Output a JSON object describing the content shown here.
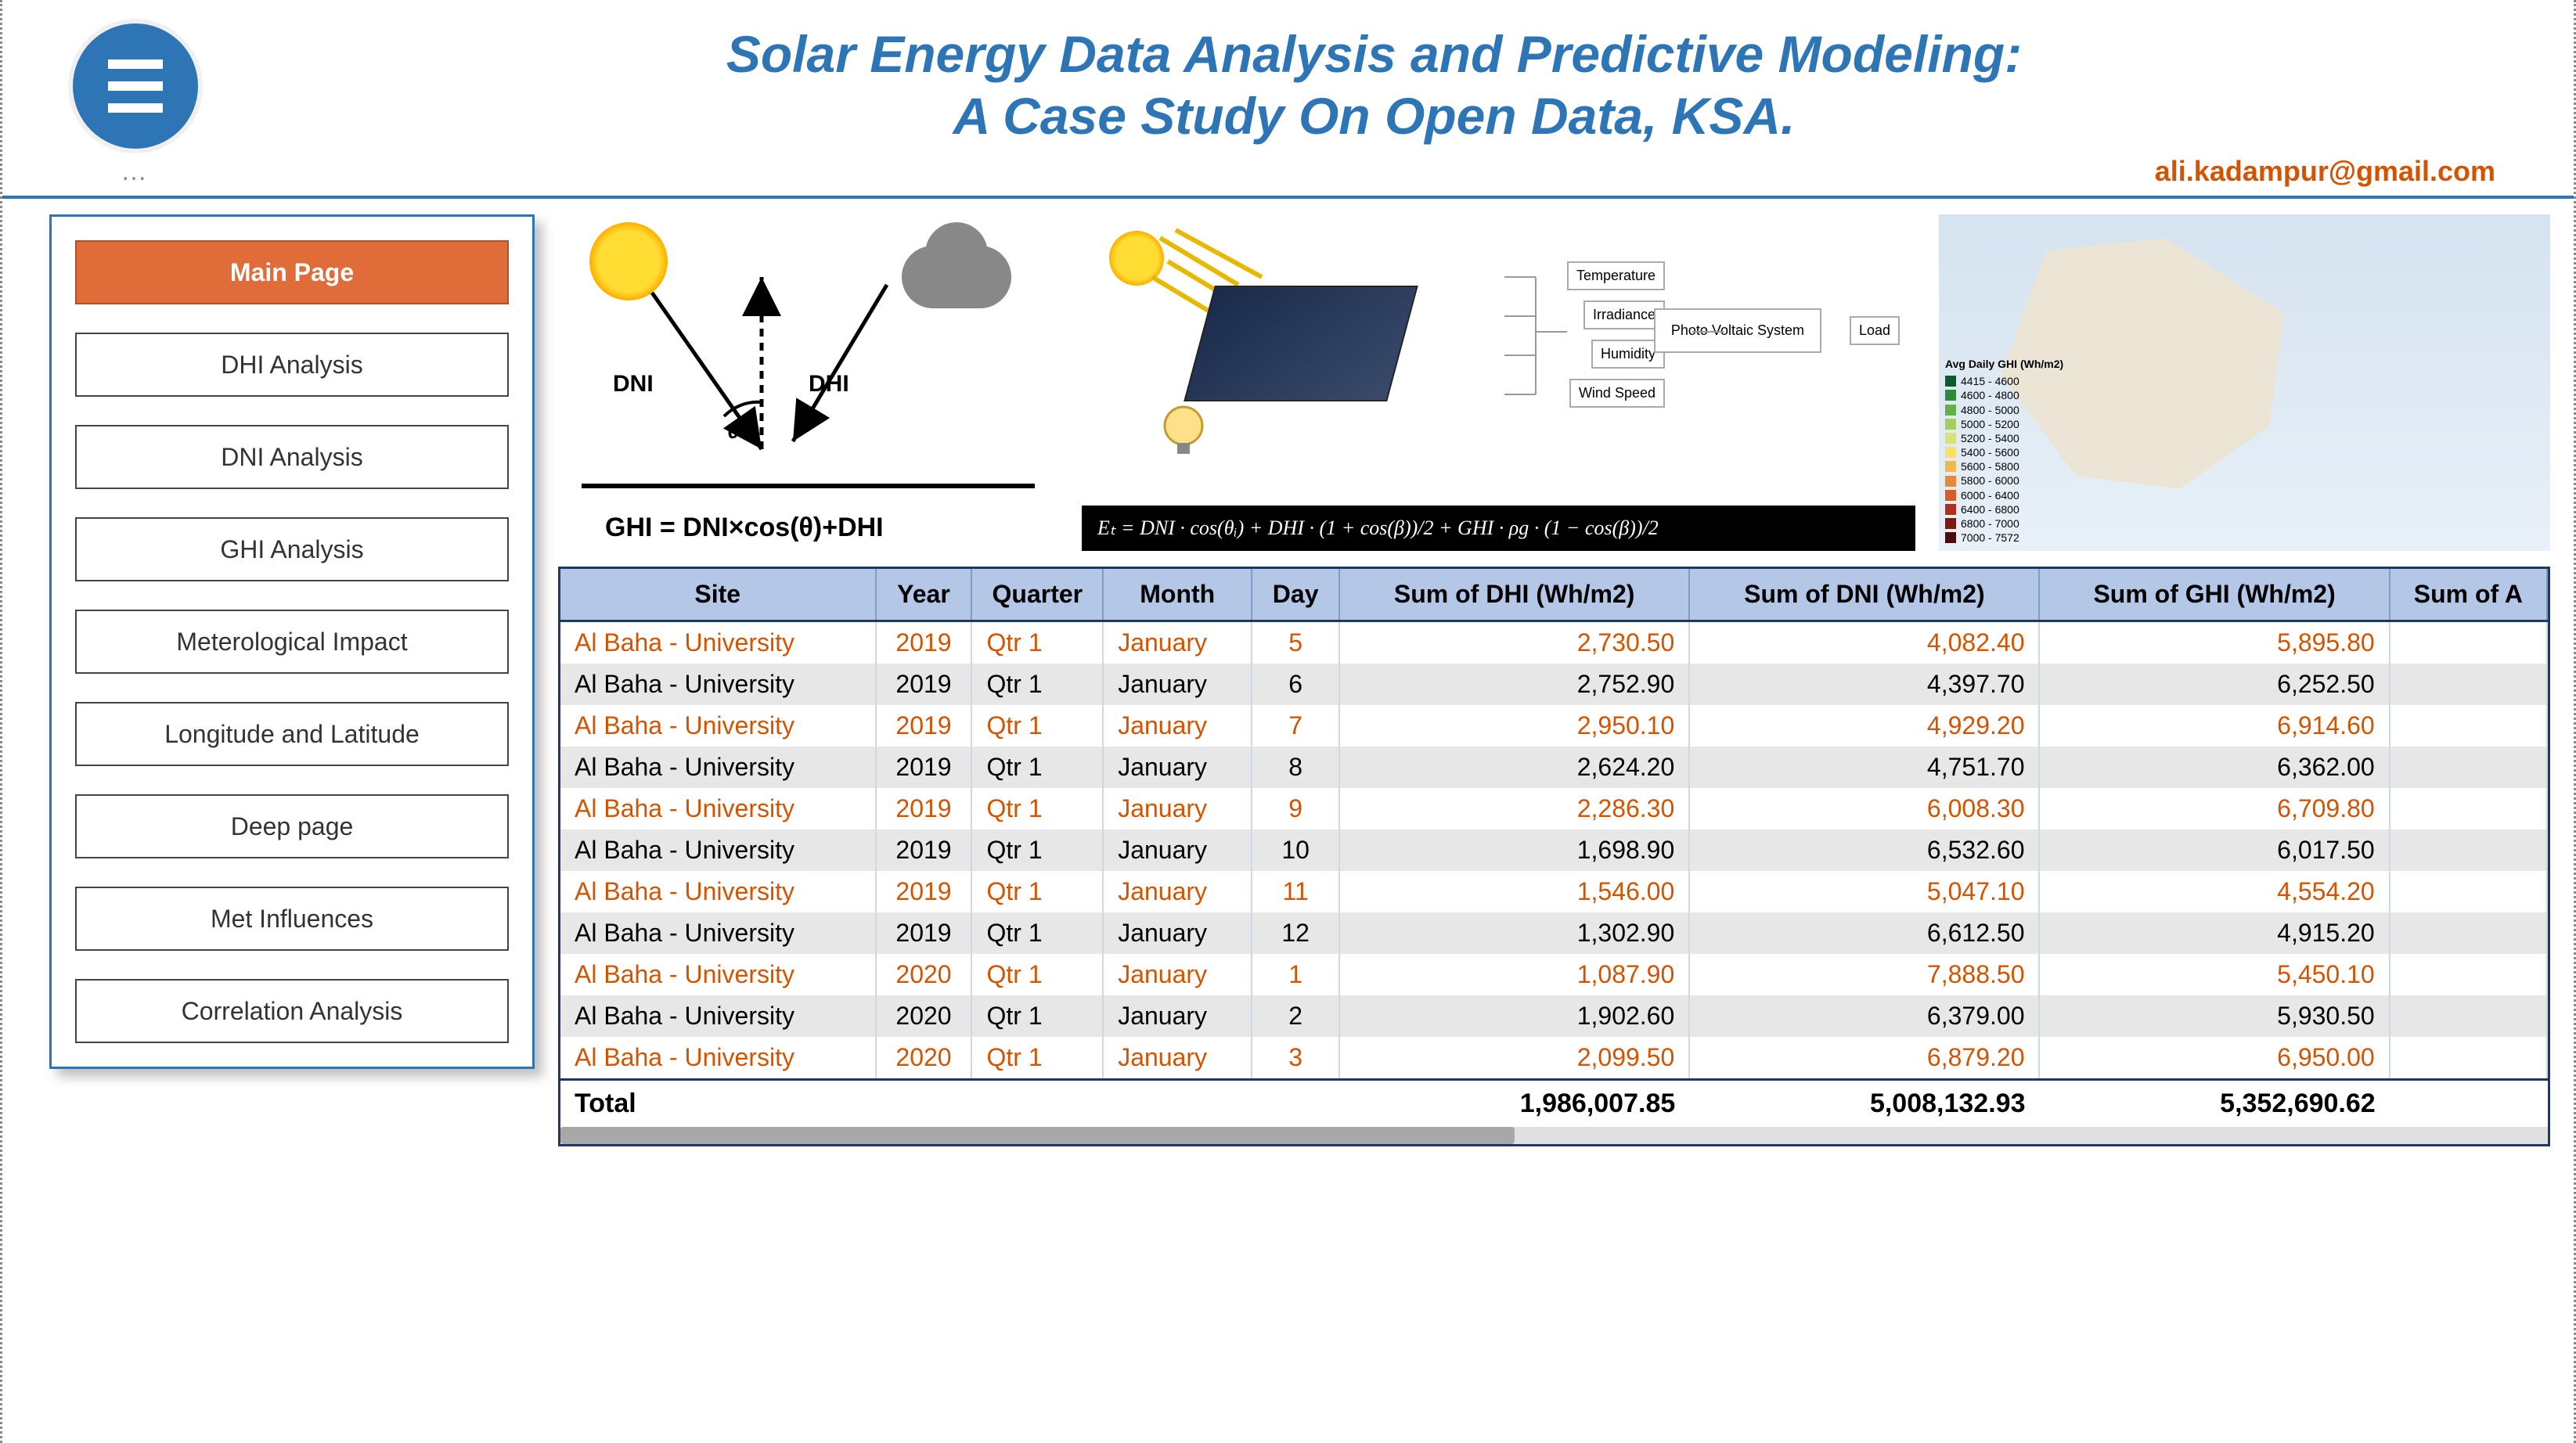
{
  "header": {
    "title_line1": "Solar Energy Data Analysis and Predictive Modeling:",
    "title_line2": "A Case Study On Open Data, KSA.",
    "email": "ali.kadampur@gmail.com",
    "title_color": "#2e75b6",
    "email_color": "#d35400"
  },
  "sidebar": {
    "items": [
      {
        "label": "Main Page",
        "active": true
      },
      {
        "label": "DHI Analysis",
        "active": false
      },
      {
        "label": "DNI Analysis",
        "active": false
      },
      {
        "label": "GHI Analysis",
        "active": false
      },
      {
        "label": "Meterological Impact",
        "active": false
      },
      {
        "label": "Longitude and Latitude",
        "active": false
      },
      {
        "label": "Deep page",
        "active": false
      },
      {
        "label": "Met Influences",
        "active": false
      },
      {
        "label": "Correlation Analysis",
        "active": false
      }
    ],
    "active_bg": "#e06c3a"
  },
  "diagrams": {
    "d1": {
      "dni_label": "DNI",
      "dhi_label": "DHI",
      "theta_label": "θ",
      "formula": "GHI = DNI×cos(θ)+DHI"
    },
    "d2": {
      "formula": "Eₜ = DNI · cos(θᵢ) + DHI · (1 + cos(β))/2 + GHI · ρg · (1 − cos(β))/2",
      "blocks": [
        "Temperature",
        "Irradiance",
        "Humidity",
        "Wind Speed"
      ],
      "pv_label": "Photo Voltaic System",
      "load_label": "Load"
    },
    "d3": {
      "legend_title": "Avg Daily GHI (Wh/m2)",
      "legend": [
        {
          "c": "#0b5c2a",
          "t": "4415 - 4600"
        },
        {
          "c": "#2e8b3e",
          "t": "4600 - 4800"
        },
        {
          "c": "#66b04a",
          "t": "4800 - 5000"
        },
        {
          "c": "#a6ce5b",
          "t": "5000 - 5200"
        },
        {
          "c": "#d9e27a",
          "t": "5200 - 5400"
        },
        {
          "c": "#f5e06a",
          "t": "5400 - 5600"
        },
        {
          "c": "#f0b84e",
          "t": "5600 - 5800"
        },
        {
          "c": "#e68a3a",
          "t": "5800 - 6000"
        },
        {
          "c": "#d95a2a",
          "t": "6000 - 6400"
        },
        {
          "c": "#b03020",
          "t": "6400 - 6800"
        },
        {
          "c": "#7a1a12",
          "t": "6800 - 7000"
        },
        {
          "c": "#4a0d0a",
          "t": "7000 - 7572"
        }
      ]
    }
  },
  "table": {
    "columns": [
      "Site",
      "Year",
      "Quarter",
      "Month",
      "Day",
      "Sum of DHI (Wh/m2)",
      "Sum of DNI (Wh/m2)",
      "Sum of GHI (Wh/m2)",
      "Sum of A"
    ],
    "rows": [
      [
        "Al Baha - University",
        "2019",
        "Qtr 1",
        "January",
        "5",
        "2,730.50",
        "4,082.40",
        "5,895.80",
        ""
      ],
      [
        "Al Baha - University",
        "2019",
        "Qtr 1",
        "January",
        "6",
        "2,752.90",
        "4,397.70",
        "6,252.50",
        ""
      ],
      [
        "Al Baha - University",
        "2019",
        "Qtr 1",
        "January",
        "7",
        "2,950.10",
        "4,929.20",
        "6,914.60",
        ""
      ],
      [
        "Al Baha - University",
        "2019",
        "Qtr 1",
        "January",
        "8",
        "2,624.20",
        "4,751.70",
        "6,362.00",
        ""
      ],
      [
        "Al Baha - University",
        "2019",
        "Qtr 1",
        "January",
        "9",
        "2,286.30",
        "6,008.30",
        "6,709.80",
        ""
      ],
      [
        "Al Baha - University",
        "2019",
        "Qtr 1",
        "January",
        "10",
        "1,698.90",
        "6,532.60",
        "6,017.50",
        ""
      ],
      [
        "Al Baha - University",
        "2019",
        "Qtr 1",
        "January",
        "11",
        "1,546.00",
        "5,047.10",
        "4,554.20",
        ""
      ],
      [
        "Al Baha - University",
        "2019",
        "Qtr 1",
        "January",
        "12",
        "1,302.90",
        "6,612.50",
        "4,915.20",
        ""
      ],
      [
        "Al Baha - University",
        "2020",
        "Qtr 1",
        "January",
        "1",
        "1,087.90",
        "7,888.50",
        "5,450.10",
        ""
      ],
      [
        "Al Baha - University",
        "2020",
        "Qtr 1",
        "January",
        "2",
        "1,902.60",
        "6,379.00",
        "5,930.50",
        ""
      ],
      [
        "Al Baha - University",
        "2020",
        "Qtr 1",
        "January",
        "3",
        "2,099.50",
        "6,879.20",
        "6,950.00",
        ""
      ]
    ],
    "totals": {
      "label": "Total",
      "dhi": "1,986,007.85",
      "dni": "5,008,132.93",
      "ghi": "5,352,690.62"
    },
    "header_bg": "#b4c7e7",
    "odd_row_color": "#d35400",
    "even_row_bg": "#e7e7e7"
  }
}
